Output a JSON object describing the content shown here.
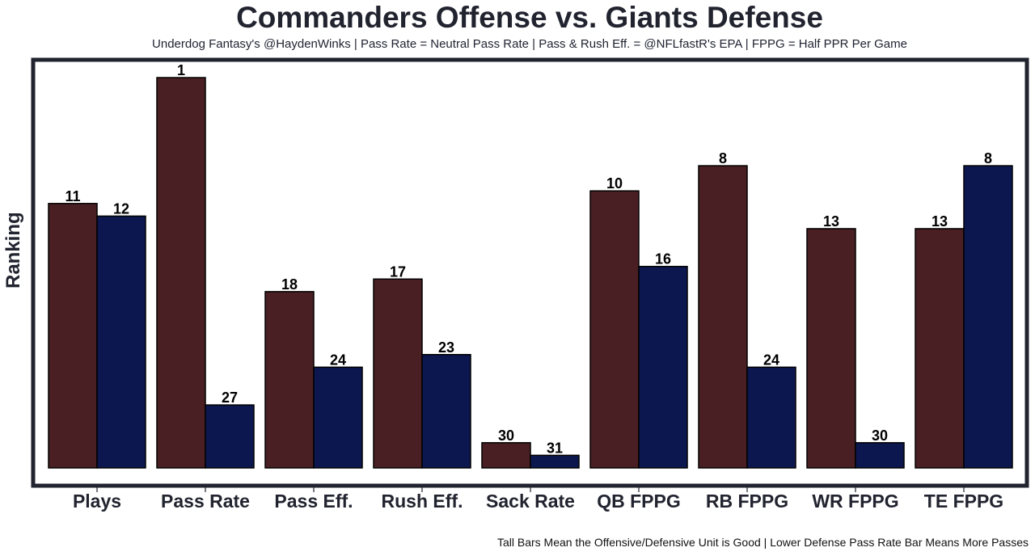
{
  "chart_data": {
    "type": "bar",
    "title": "Commanders Offense vs. Giants Defense",
    "subtitle": "Underdog Fantasy's @HaydenWinks | Pass Rate = Neutral Pass Rate | Pass & Rush Eff. = @NFLfastR's EPA | FPPG = Half PPR Per Game",
    "footnote": "Tall Bars Mean the Offensive/Defensive Unit is Good | Lower Defense Pass Rate Bar Means More Passes",
    "xlabel": "",
    "ylabel": "Ranking",
    "categories": [
      "Plays",
      "Pass Rate",
      "Pass Eff.",
      "Rush Eff.",
      "Sack Rate",
      "QB FPPG",
      "RB FPPG",
      "WR FPPG",
      "TE FPPG"
    ],
    "series": [
      {
        "name": "Commanders Offense",
        "color": "#4a1f23",
        "values": [
          11,
          1,
          18,
          17,
          30,
          10,
          8,
          13,
          13
        ]
      },
      {
        "name": "Giants Defense",
        "color": "#0c1750",
        "values": [
          12,
          27,
          24,
          23,
          31,
          16,
          24,
          30,
          8
        ]
      }
    ],
    "value_note": "Bars are rank-inverted: rank 1 is tallest",
    "rank_range": [
      1,
      32
    ],
    "grid": false,
    "legend": "none"
  }
}
